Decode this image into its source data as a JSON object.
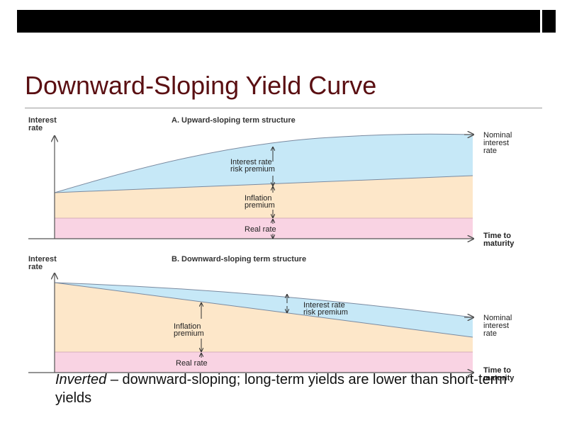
{
  "slide": {
    "title": "Downward-Sloping Yield Curve",
    "caption_emphasis": "Inverted",
    "caption_rest": " – downward-sloping; long-term yields are lower than short-term yields"
  },
  "panel_a": {
    "heading": "A. Upward-sloping term structure",
    "y_axis_label": [
      "Interest",
      "rate"
    ],
    "x_axis_label": [
      "Time to",
      "maturity"
    ],
    "curve_label": [
      "Nominal",
      "interest",
      "rate"
    ],
    "band_risk": [
      "Interest rate",
      "risk premium"
    ],
    "band_inflation": [
      "Inflation",
      "premium"
    ],
    "band_real": "Real rate"
  },
  "panel_b": {
    "heading": "B. Downward-sloping term structure",
    "y_axis_label": [
      "Interest",
      "rate"
    ],
    "x_axis_label": [
      "Time to",
      "maturity"
    ],
    "curve_label": [
      "Nominal",
      "interest",
      "rate"
    ],
    "band_risk": [
      "Interest rate",
      "risk premium"
    ],
    "band_inflation": [
      "Inflation",
      "premium"
    ],
    "band_real": "Real rate"
  },
  "colors": {
    "title": "#5a0f12",
    "risk_band": "#c6e8f7",
    "inflation_band": "#fde7c9",
    "real_band": "#f9d3e3",
    "axis": "#555555"
  }
}
